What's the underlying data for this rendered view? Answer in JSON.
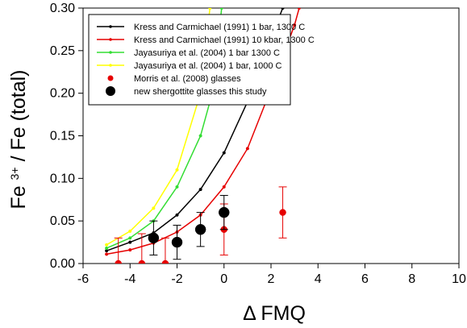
{
  "chart_data": {
    "type": "scatter",
    "title": "",
    "xlabel": "Δ FMQ",
    "ylabel": {
      "base": "Fe",
      "superscript": "3+",
      "rest": " / Fe (total)"
    },
    "xlim": [
      -6,
      10
    ],
    "ylim": [
      0,
      0.3
    ],
    "x_ticks": [
      -6,
      -4,
      -2,
      0,
      2,
      4,
      6,
      8,
      10
    ],
    "y_ticks": [
      0.0,
      0.05,
      0.1,
      0.15,
      0.2,
      0.25,
      0.3
    ],
    "x_tick_labels": [
      "-6",
      "-4",
      "-2",
      "0",
      "2",
      "4",
      "6",
      "8",
      "10"
    ],
    "y_tick_labels": [
      "0.00",
      "0.05",
      "0.10",
      "0.15",
      "0.20",
      "0.25",
      "0.30"
    ],
    "grid": false,
    "legend_position": "top-left",
    "series": [
      {
        "name": "Kress and Carmichael (1991) 1 bar, 1300 C",
        "kind": "line-markers",
        "color": "#000000",
        "x": [
          -5,
          -4,
          -3,
          -2,
          -1,
          0,
          1,
          2,
          2.5
        ],
        "y": [
          0.015,
          0.025,
          0.036,
          0.057,
          0.087,
          0.13,
          0.19,
          0.265,
          0.3
        ]
      },
      {
        "name": "Kress and Carmichael (1991) 10 kbar, 1300 C",
        "kind": "line-markers",
        "color": "#e60000",
        "x": [
          -5,
          -4,
          -3,
          -2,
          -1,
          0,
          1,
          2,
          3,
          3.2
        ],
        "y": [
          0.011,
          0.016,
          0.024,
          0.037,
          0.057,
          0.09,
          0.135,
          0.205,
          0.28,
          0.3
        ]
      },
      {
        "name": "Jayasuriya et al. (2004) 1 bar 1300 C",
        "kind": "line-markers",
        "color": "#33dd33",
        "x": [
          -5,
          -4,
          -3,
          -2,
          -1,
          -0.5,
          -0.1
        ],
        "y": [
          0.018,
          0.03,
          0.05,
          0.09,
          0.15,
          0.2,
          0.3
        ]
      },
      {
        "name": "Jayasuriya et al. (2004) 1 bar, 1000 C",
        "kind": "line-markers",
        "color": "#ffff00",
        "x": [
          -5,
          -4,
          -3,
          -2,
          -1,
          -0.6
        ],
        "y": [
          0.022,
          0.038,
          0.065,
          0.11,
          0.2,
          0.3
        ]
      },
      {
        "name": "Morris et al. (2008) glasses",
        "kind": "points-errorbars",
        "color": "#e60000",
        "points": [
          {
            "x": -4.5,
            "y": 0.0,
            "yerr": [
              0.0,
              0.03
            ]
          },
          {
            "x": -3.5,
            "y": 0.0,
            "yerr": [
              0.0,
              0.035
            ]
          },
          {
            "x": -2.5,
            "y": 0.0,
            "yerr": [
              0.0,
              0.03
            ]
          },
          {
            "x": 0.0,
            "y": 0.04,
            "yerr": [
              0.03,
              0.03
            ]
          },
          {
            "x": 2.5,
            "y": 0.06,
            "yerr": [
              0.03,
              0.03
            ]
          }
        ]
      },
      {
        "name": "new shergottite glasses this study",
        "kind": "points-errorbars",
        "color": "#000000",
        "points": [
          {
            "x": -3.0,
            "y": 0.03,
            "yerr": [
              0.02,
              0.02
            ]
          },
          {
            "x": -2.0,
            "y": 0.025,
            "yerr": [
              0.02,
              0.02
            ]
          },
          {
            "x": -1.0,
            "y": 0.04,
            "yerr": [
              0.02,
              0.02
            ]
          },
          {
            "x": 0.0,
            "y": 0.06,
            "yerr": [
              0.02,
              0.02
            ]
          }
        ]
      }
    ]
  }
}
